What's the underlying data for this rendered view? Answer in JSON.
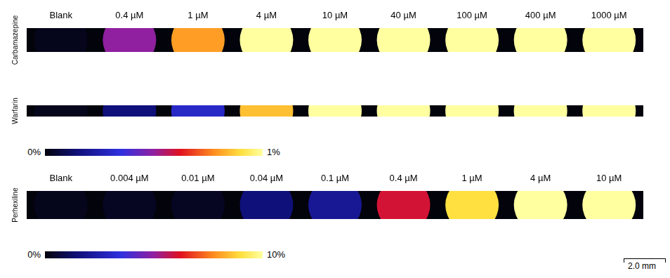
{
  "chart_data": [
    {
      "type": "heatmap",
      "categories": [
        "Blank",
        "0.4 µM",
        "1 µM",
        "4 µM",
        "10 µM",
        "40 µM",
        "100 µM",
        "400 µM",
        "1000 µM"
      ],
      "rows": [
        {
          "name": "Carbamazepine",
          "values": [
            0.02,
            0.5,
            0.8,
            1,
            1,
            1,
            1,
            1,
            1
          ]
        },
        {
          "name": "Warfarin",
          "values": [
            0.02,
            0.15,
            0.3,
            0.85,
            1,
            1,
            1,
            1,
            1
          ]
        }
      ],
      "colorbar": {
        "range": [
          0,
          1
        ],
        "ticks": [
          {
            "value": 0,
            "label": "0%"
          },
          {
            "value": 1,
            "label": "1%"
          }
        ]
      }
    },
    {
      "type": "heatmap",
      "categories": [
        "Blank",
        "0.004 µM",
        "0.01 µM",
        "0.04 µM",
        "0.1 µM",
        "0.4 µM",
        "1 µM",
        "4 µM",
        "10 µM"
      ],
      "rows": [
        {
          "name": "Perhexiline",
          "values": [
            0.2,
            0.3,
            0.3,
            1.5,
            2,
            6,
            9,
            10,
            10
          ]
        }
      ],
      "colorbar": {
        "range": [
          0,
          10
        ],
        "ticks": [
          {
            "value": 0,
            "label": "0%"
          },
          {
            "value": 10,
            "label": "10%"
          }
        ]
      }
    }
  ],
  "scale_bar": "2.0 mm"
}
